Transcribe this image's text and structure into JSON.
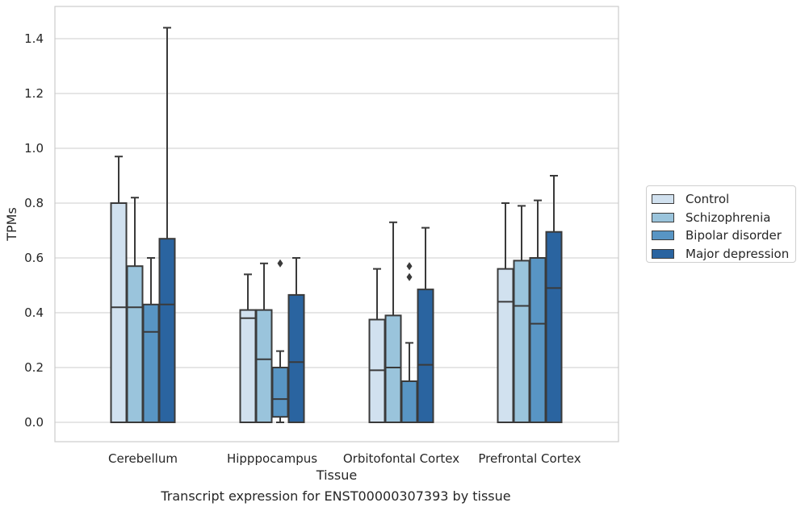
{
  "caption": "Transcript expression for ENST00000307393 by tissue",
  "chart_data": {
    "type": "box",
    "xlabel": "Tissue",
    "ylabel": "TPMs",
    "ylim": [
      -0.07,
      1.52
    ],
    "yticks": [
      "0.0",
      "0.2",
      "0.4",
      "0.6",
      "0.8",
      "1.0",
      "1.2",
      "1.4"
    ],
    "grid": true,
    "legend_position": "right",
    "categories": [
      "Cerebellum",
      "Hipppocampus",
      "Orbitofontal Cortex",
      "Prefrontal Cortex"
    ],
    "series": [
      {
        "name": "Control",
        "color": "#d1e1ef",
        "boxes": [
          {
            "q1": 0.0,
            "median": 0.42,
            "q3": 0.8,
            "whisker_low": 0.0,
            "whisker_high": 0.97,
            "outliers": []
          },
          {
            "q1": 0.0,
            "median": 0.38,
            "q3": 0.41,
            "whisker_low": 0.0,
            "whisker_high": 0.54,
            "outliers": []
          },
          {
            "q1": 0.0,
            "median": 0.19,
            "q3": 0.375,
            "whisker_low": 0.0,
            "whisker_high": 0.56,
            "outliers": []
          },
          {
            "q1": 0.0,
            "median": 0.44,
            "q3": 0.56,
            "whisker_low": 0.0,
            "whisker_high": 0.8,
            "outliers": []
          }
        ]
      },
      {
        "name": "Schizophrenia",
        "color": "#9ac4dc",
        "boxes": [
          {
            "q1": 0.0,
            "median": 0.42,
            "q3": 0.57,
            "whisker_low": 0.0,
            "whisker_high": 0.82,
            "outliers": []
          },
          {
            "q1": 0.0,
            "median": 0.23,
            "q3": 0.41,
            "whisker_low": 0.0,
            "whisker_high": 0.58,
            "outliers": []
          },
          {
            "q1": 0.0,
            "median": 0.2,
            "q3": 0.39,
            "whisker_low": 0.0,
            "whisker_high": 0.73,
            "outliers": []
          },
          {
            "q1": 0.0,
            "median": 0.425,
            "q3": 0.59,
            "whisker_low": 0.0,
            "whisker_high": 0.79,
            "outliers": []
          }
        ]
      },
      {
        "name": "Bipolar disorder",
        "color": "#5895c4",
        "boxes": [
          {
            "q1": 0.0,
            "median": 0.33,
            "q3": 0.43,
            "whisker_low": 0.0,
            "whisker_high": 0.6,
            "outliers": []
          },
          {
            "q1": 0.02,
            "median": 0.085,
            "q3": 0.2,
            "whisker_low": 0.0,
            "whisker_high": 0.26,
            "outliers": [
              0.58
            ]
          },
          {
            "q1": 0.0,
            "median": 0.15,
            "q3": 0.15,
            "whisker_low": 0.0,
            "whisker_high": 0.29,
            "outliers": [
              0.53,
              0.57
            ]
          },
          {
            "q1": 0.0,
            "median": 0.36,
            "q3": 0.6,
            "whisker_low": 0.0,
            "whisker_high": 0.81,
            "outliers": []
          }
        ]
      },
      {
        "name": "Major depression",
        "color": "#2a64a0",
        "boxes": [
          {
            "q1": 0.0,
            "median": 0.43,
            "q3": 0.67,
            "whisker_low": 0.0,
            "whisker_high": 1.44,
            "outliers": []
          },
          {
            "q1": 0.0,
            "median": 0.22,
            "q3": 0.465,
            "whisker_low": 0.0,
            "whisker_high": 0.6,
            "outliers": []
          },
          {
            "q1": 0.0,
            "median": 0.21,
            "q3": 0.485,
            "whisker_low": 0.0,
            "whisker_high": 0.71,
            "outliers": []
          },
          {
            "q1": 0.0,
            "median": 0.49,
            "q3": 0.695,
            "whisker_low": 0.0,
            "whisker_high": 0.9,
            "outliers": []
          }
        ]
      }
    ]
  }
}
